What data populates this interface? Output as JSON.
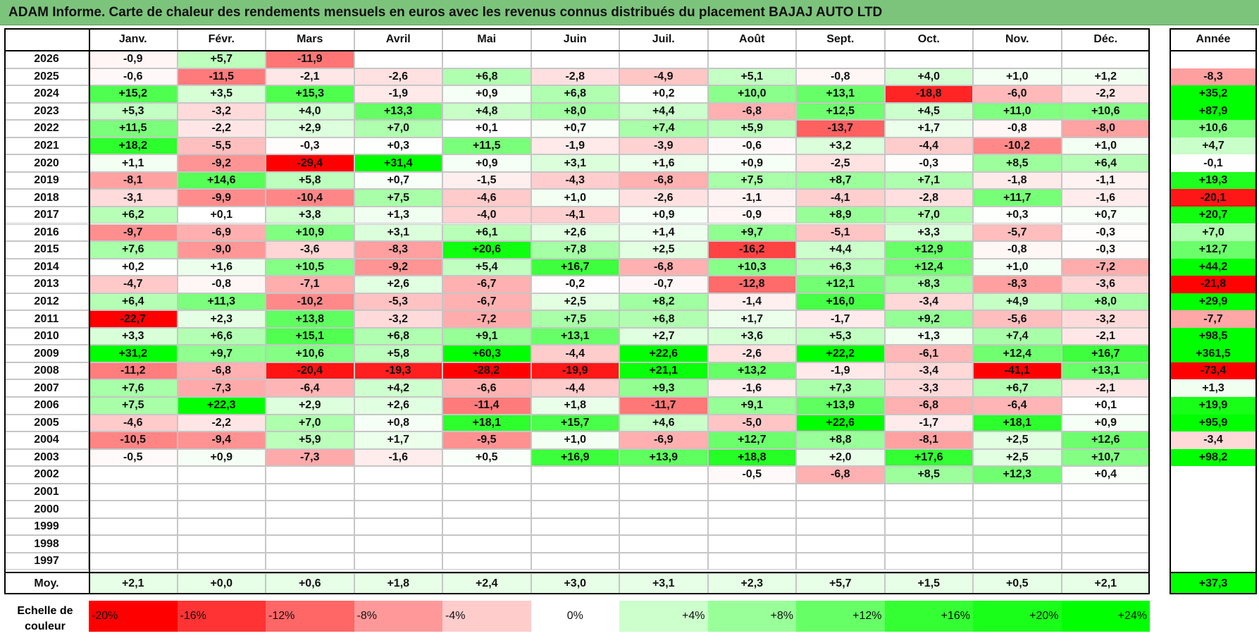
{
  "title": "ADAM Informe. Carte de chaleur des rendements mensuels en euros avec les revenus connus distribués du placement BAJAJ AUTO LTD",
  "chart_data": {
    "type": "heatmap",
    "columns": [
      "Janv.",
      "Févr.",
      "Mars",
      "Avril",
      "Mai",
      "Juin",
      "Juil.",
      "Août",
      "Sept.",
      "Oct.",
      "Nov.",
      "Déc."
    ],
    "annual_header": "Année",
    "rows": [
      {
        "year": "2026",
        "values": [
          "-0,9",
          "+5,7",
          "-11,9",
          "",
          "",
          "",
          "",
          "",
          "",
          "",
          "",
          ""
        ],
        "annual": ""
      },
      {
        "year": "2025",
        "values": [
          "-0,6",
          "-11,5",
          "-2,1",
          "-2,6",
          "+6,8",
          "-2,8",
          "-4,9",
          "+5,1",
          "-0,8",
          "+4,0",
          "+1,0",
          "+1,2"
        ],
        "annual": "-8,3"
      },
      {
        "year": "2024",
        "values": [
          "+15,2",
          "+3,5",
          "+15,3",
          "-1,9",
          "+0,9",
          "+6,8",
          "+0,2",
          "+10,0",
          "+13,1",
          "-18,8",
          "-6,0",
          "-2,2"
        ],
        "annual": "+35,2"
      },
      {
        "year": "2023",
        "values": [
          "+5,3",
          "-3,2",
          "+4,0",
          "+13,3",
          "+4,8",
          "+8,0",
          "+4,4",
          "-6,8",
          "+12,5",
          "+4,5",
          "+11,0",
          "+10,6"
        ],
        "annual": "+87,9"
      },
      {
        "year": "2022",
        "values": [
          "+11,5",
          "-2,2",
          "+2,9",
          "+7,0",
          "+0,1",
          "+0,7",
          "+7,4",
          "+5,9",
          "-13,7",
          "+1,7",
          "-0,8",
          "-8,0"
        ],
        "annual": "+10,6"
      },
      {
        "year": "2021",
        "values": [
          "+18,2",
          "-5,5",
          "-0,3",
          "+0,3",
          "+11,5",
          "-1,9",
          "-3,9",
          "-0,6",
          "+3,2",
          "-4,4",
          "-10,2",
          "+1,0"
        ],
        "annual": "+4,7"
      },
      {
        "year": "2020",
        "values": [
          "+1,1",
          "-9,2",
          "-29,4",
          "+31,4",
          "+0,9",
          "+3,1",
          "+1,6",
          "+0,9",
          "-2,5",
          "-0,3",
          "+8,5",
          "+6,4"
        ],
        "annual": "-0,1"
      },
      {
        "year": "2019",
        "values": [
          "-8,1",
          "+14,6",
          "+5,8",
          "+0,7",
          "-1,5",
          "-4,3",
          "-6,8",
          "+7,5",
          "+8,7",
          "+7,1",
          "-1,8",
          "-1,1"
        ],
        "annual": "+19,3"
      },
      {
        "year": "2018",
        "values": [
          "-3,1",
          "-9,9",
          "-10,4",
          "+7,5",
          "-4,6",
          "+1,0",
          "-2,6",
          "-1,1",
          "-4,1",
          "-2,8",
          "+11,7",
          "-1,6"
        ],
        "annual": "-20,1"
      },
      {
        "year": "2017",
        "values": [
          "+6,2",
          "+0,1",
          "+3,8",
          "+1,3",
          "-4,0",
          "-4,1",
          "+0,9",
          "-0,9",
          "+8,9",
          "+7,0",
          "+0,3",
          "+0,7"
        ],
        "annual": "+20,7"
      },
      {
        "year": "2016",
        "values": [
          "-9,7",
          "-6,9",
          "+10,9",
          "+3,1",
          "+6,1",
          "+2,6",
          "+1,4",
          "+9,7",
          "-5,1",
          "+3,3",
          "-5,7",
          "-0,3"
        ],
        "annual": "+7,0"
      },
      {
        "year": "2015",
        "values": [
          "+7,6",
          "-9,0",
          "-3,6",
          "-8,3",
          "+20,6",
          "+7,8",
          "+2,5",
          "-16,2",
          "+4,4",
          "+12,9",
          "-0,8",
          "-0,3"
        ],
        "annual": "+12,7"
      },
      {
        "year": "2014",
        "values": [
          "+0,2",
          "+1,6",
          "+10,5",
          "-9,2",
          "+5,4",
          "+16,7",
          "-6,8",
          "+10,3",
          "+6,3",
          "+12,4",
          "+1,0",
          "-7,2"
        ],
        "annual": "+44,2"
      },
      {
        "year": "2013",
        "values": [
          "-4,7",
          "-0,8",
          "-7,1",
          "+2,6",
          "-6,7",
          "-0,2",
          "-0,7",
          "-12,8",
          "+12,1",
          "+8,3",
          "-8,3",
          "-3,6"
        ],
        "annual": "-21,8"
      },
      {
        "year": "2012",
        "values": [
          "+6,4",
          "+11,3",
          "-10,2",
          "-5,3",
          "-6,7",
          "+2,5",
          "+8,2",
          "-1,4",
          "+16,0",
          "-3,4",
          "+4,9",
          "+8,0"
        ],
        "annual": "+29,9"
      },
      {
        "year": "2011",
        "values": [
          "-22,7",
          "+2,3",
          "+13,8",
          "-3,2",
          "-7,2",
          "+7,5",
          "+6,8",
          "+1,7",
          "-1,7",
          "+9,2",
          "-5,6",
          "-3,2"
        ],
        "annual": "-7,7"
      },
      {
        "year": "2010",
        "values": [
          "+3,3",
          "+6,6",
          "+15,1",
          "+6,8",
          "+9,1",
          "+13,1",
          "+2,7",
          "+3,6",
          "+5,3",
          "+1,3",
          "+7,4",
          "-2,1"
        ],
        "annual": "+98,5"
      },
      {
        "year": "2009",
        "values": [
          "+31,2",
          "+9,7",
          "+10,6",
          "+5,8",
          "+60,3",
          "-4,4",
          "+22,6",
          "-2,6",
          "+22,2",
          "-6,1",
          "+12,4",
          "+16,7"
        ],
        "annual": "+361,5"
      },
      {
        "year": "2008",
        "values": [
          "-11,2",
          "-6,8",
          "-20,4",
          "-19,3",
          "-28,2",
          "-19,9",
          "+21,1",
          "+13,2",
          "-1,9",
          "-3,4",
          "-41,1",
          "+13,1"
        ],
        "annual": "-73,4"
      },
      {
        "year": "2007",
        "values": [
          "+7,6",
          "-7,3",
          "-6,4",
          "+4,2",
          "-6,6",
          "-4,4",
          "+9,3",
          "-1,6",
          "+7,3",
          "-3,3",
          "+6,7",
          "-2,1"
        ],
        "annual": "+1,3"
      },
      {
        "year": "2006",
        "values": [
          "+7,5",
          "+22,3",
          "+2,9",
          "+2,6",
          "-11,4",
          "+1,8",
          "-11,7",
          "+9,1",
          "+13,9",
          "-6,8",
          "-6,4",
          "+0,1"
        ],
        "annual": "+19,9"
      },
      {
        "year": "2005",
        "values": [
          "-4,6",
          "-2,2",
          "+7,0",
          "+0,8",
          "+18,1",
          "+15,7",
          "+4,6",
          "-5,0",
          "+22,6",
          "-1,7",
          "+18,1",
          "+0,9"
        ],
        "annual": "+95,9"
      },
      {
        "year": "2004",
        "values": [
          "-10,5",
          "-9,4",
          "+5,9",
          "+1,7",
          "-9,5",
          "+1,0",
          "-6,9",
          "+12,7",
          "+8,8",
          "-8,1",
          "+2,5",
          "+12,6"
        ],
        "annual": "-3,4"
      },
      {
        "year": "2003",
        "values": [
          "-0,5",
          "+0,9",
          "-7,3",
          "-1,6",
          "+0,5",
          "+16,9",
          "+13,9",
          "+18,8",
          "+2,0",
          "+17,6",
          "+2,5",
          "+10,7"
        ],
        "annual": "+98,2"
      },
      {
        "year": "2002",
        "values": [
          "",
          "",
          "",
          "",
          "",
          "",
          "",
          "-0,5",
          "-6,8",
          "+8,5",
          "+12,3",
          "+0,4"
        ],
        "annual": ""
      },
      {
        "year": "2001",
        "values": [
          "",
          "",
          "",
          "",
          "",
          "",
          "",
          "",
          "",
          "",
          "",
          ""
        ],
        "annual": ""
      },
      {
        "year": "2000",
        "values": [
          "",
          "",
          "",
          "",
          "",
          "",
          "",
          "",
          "",
          "",
          "",
          ""
        ],
        "annual": ""
      },
      {
        "year": "1999",
        "values": [
          "",
          "",
          "",
          "",
          "",
          "",
          "",
          "",
          "",
          "",
          "",
          ""
        ],
        "annual": ""
      },
      {
        "year": "1998",
        "values": [
          "",
          "",
          "",
          "",
          "",
          "",
          "",
          "",
          "",
          "",
          "",
          ""
        ],
        "annual": ""
      },
      {
        "year": "1997",
        "values": [
          "",
          "",
          "",
          "",
          "",
          "",
          "",
          "",
          "",
          "",
          "",
          ""
        ],
        "annual": ""
      }
    ],
    "average": {
      "label": "Moy.",
      "values": [
        "+2,1",
        "+0,0",
        "+0,6",
        "+1,8",
        "+2,4",
        "+3,0",
        "+3,1",
        "+2,3",
        "+5,7",
        "+1,5",
        "+0,5",
        "+2,1"
      ],
      "annual": "+37,3"
    },
    "legend": {
      "label": "Echelle de couleur",
      "steps": [
        {
          "text": "-20%",
          "color": "#ff0000",
          "align": "left"
        },
        {
          "text": "-16%",
          "color": "#ff3333",
          "align": "left"
        },
        {
          "text": "-12%",
          "color": "#ff6666",
          "align": "left"
        },
        {
          "text": "-8%",
          "color": "#ff9999",
          "align": "left"
        },
        {
          "text": "-4%",
          "color": "#ffcccc",
          "align": "left"
        },
        {
          "text": "0%",
          "color": "#ffffff",
          "align": "center"
        },
        {
          "text": "+4%",
          "color": "#ccffcc",
          "align": "right"
        },
        {
          "text": "+8%",
          "color": "#99ff99",
          "align": "right"
        },
        {
          "text": "+12%",
          "color": "#66ff66",
          "align": "right"
        },
        {
          "text": "+16%",
          "color": "#33ff33",
          "align": "right"
        },
        {
          "text": "+20%",
          "color": "#1aff1a",
          "align": "right"
        },
        {
          "text": "+24%",
          "color": "#00ff00",
          "align": "right"
        }
      ]
    }
  }
}
